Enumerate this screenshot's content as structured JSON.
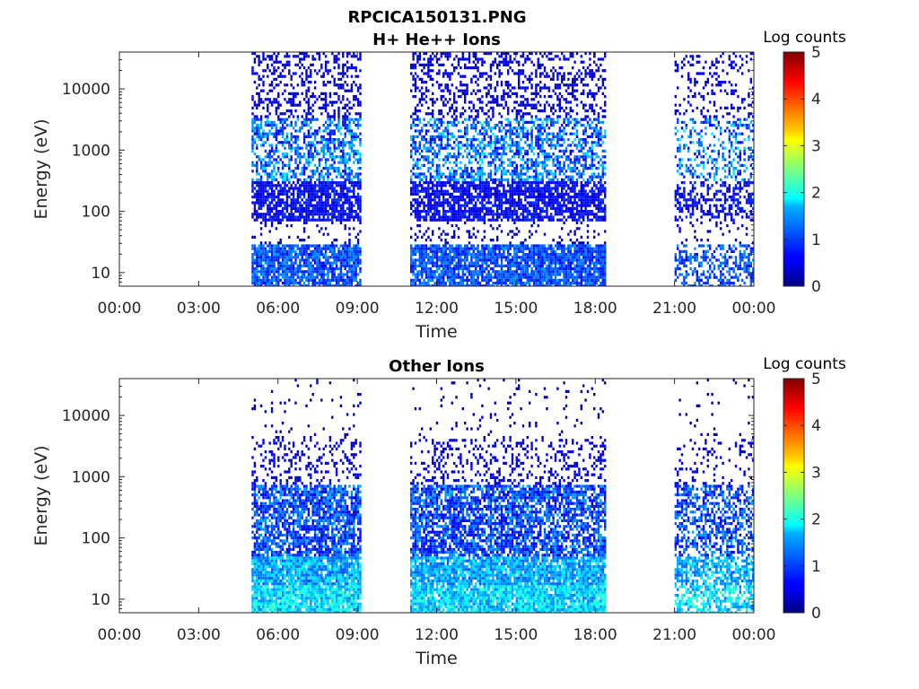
{
  "figure_title": "RPCICA150131.PNG",
  "chart_data": [
    {
      "type": "heatmap",
      "title": "H+ He++ Ions",
      "xlabel": "Time",
      "ylabel": "Energy (eV)",
      "yscale": "log",
      "ylim": [
        6,
        40000
      ],
      "xlim_hours": [
        0,
        24
      ],
      "x_ticks": [
        "00:00",
        "03:00",
        "06:00",
        "09:00",
        "12:00",
        "15:00",
        "18:00",
        "21:00",
        "00:00"
      ],
      "y_ticks": [
        10,
        100,
        1000,
        10000
      ],
      "y_tick_labels": [
        "10",
        "100",
        "1000",
        "10000"
      ],
      "colorbar": {
        "label": "Log counts",
        "range": [
          0,
          5
        ],
        "ticks": [
          "0",
          "1",
          "2",
          "3",
          "4",
          "5"
        ],
        "colormap": "jet"
      },
      "data_intervals_hours": [
        [
          5.0,
          9.1
        ],
        [
          11.0,
          18.4
        ],
        [
          21.0,
          24.0
        ]
      ],
      "grid": false
    },
    {
      "type": "heatmap",
      "title": "Other Ions",
      "xlabel": "Time",
      "ylabel": "Energy (eV)",
      "yscale": "log",
      "ylim": [
        6,
        40000
      ],
      "xlim_hours": [
        0,
        24
      ],
      "x_ticks": [
        "00:00",
        "03:00",
        "06:00",
        "09:00",
        "12:00",
        "15:00",
        "18:00",
        "21:00",
        "00:00"
      ],
      "y_ticks": [
        10,
        100,
        1000,
        10000
      ],
      "y_tick_labels": [
        "10",
        "100",
        "1000",
        "10000"
      ],
      "colorbar": {
        "label": "Log counts",
        "range": [
          0,
          5
        ],
        "ticks": [
          "0",
          "1",
          "2",
          "3",
          "4",
          "5"
        ],
        "colormap": "jet"
      },
      "data_intervals_hours": [
        [
          5.0,
          9.1
        ],
        [
          11.0,
          18.4
        ],
        [
          21.0,
          24.0
        ]
      ],
      "grid": false
    }
  ]
}
